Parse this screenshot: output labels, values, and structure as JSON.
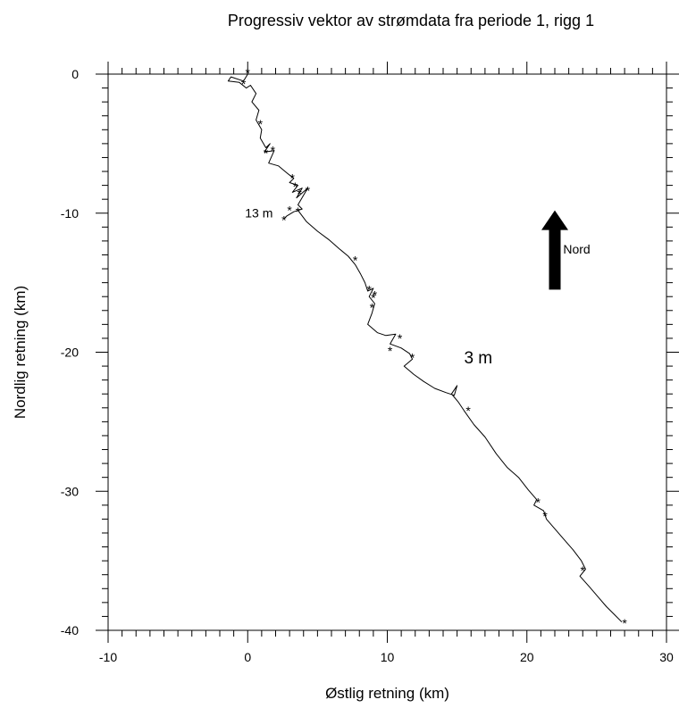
{
  "chart_data": {
    "type": "line",
    "title": "Progressiv vektor av strømdata fra periode 1, rigg 1",
    "xlabel": "Østlig retning (km)",
    "ylabel": "Nordlig retning (km)",
    "xlim": [
      -10,
      30
    ],
    "ylim": [
      -40,
      0
    ],
    "x_ticks": [
      -10,
      0,
      10,
      20,
      30
    ],
    "y_ticks": [
      0,
      -10,
      -20,
      -30,
      -40
    ],
    "x_tick_labels": [
      "-10",
      "0",
      "10",
      "20",
      "30"
    ],
    "y_tick_labels": [
      "0",
      "-10",
      "-20",
      "-30",
      "-40"
    ],
    "grid": false,
    "series": [
      {
        "name": "13 m",
        "x": [
          0,
          -0.3,
          -1.2,
          -1.4,
          -0.6,
          -0.1,
          0.2,
          0.6,
          0.3,
          0.8,
          0.6,
          1.0,
          0.9,
          1.3,
          1.6,
          1.2,
          1.9,
          1.5,
          2.2,
          2.8,
          3.3,
          3.0,
          3.6,
          3.2,
          3.9,
          3.5,
          4.3,
          3.6,
          3.9,
          3.3,
          2.8,
          2.6
        ],
        "y": [
          0,
          -0.5,
          -0.2,
          -0.5,
          -0.6,
          -1.0,
          -0.8,
          -1.4,
          -2.0,
          -2.6,
          -3.3,
          -4.0,
          -4.6,
          -5.3,
          -5.0,
          -5.6,
          -5.5,
          -6.4,
          -6.6,
          -7.1,
          -7.5,
          -7.8,
          -8.0,
          -8.5,
          -8.2,
          -8.9,
          -8.2,
          -9.4,
          -9.7,
          -9.9,
          -10.2,
          -10.4
        ],
        "markers_x": [
          0,
          -0.3,
          0.9,
          1.3,
          1.8,
          3.2,
          3.4,
          3.7,
          4.3,
          3.0,
          3.6,
          2.6
        ],
        "markers_y": [
          0.3,
          -0.5,
          -3.4,
          -5.5,
          -5.3,
          -7.3,
          -7.9,
          -8.4,
          -8.2,
          -9.6,
          -9.7,
          -10.3
        ]
      },
      {
        "name": "3 m",
        "x": [
          3.6,
          4.2,
          5.0,
          5.8,
          6.6,
          7.2,
          7.7,
          8.1,
          8.4,
          8.6,
          9.0,
          8.7,
          9.1,
          8.9,
          8.6,
          9.3,
          9.9,
          10.6,
          10.2,
          11.0,
          11.6,
          11.8,
          11.2,
          11.9,
          12.6,
          13.4,
          14.2,
          14.8,
          15.0,
          14.6,
          15.1,
          15.5,
          16.2,
          17.0,
          17.8,
          18.6,
          19.4,
          20.1,
          20.7,
          20.5,
          21.2,
          21.4,
          22.0,
          22.6,
          23.3,
          23.9,
          24.2,
          23.8,
          24.5,
          25.1,
          25.7,
          26.3,
          26.8
        ],
        "y": [
          -9.8,
          -10.6,
          -11.3,
          -11.9,
          -12.6,
          -13.1,
          -13.7,
          -14.4,
          -15.0,
          -15.6,
          -15.4,
          -16.0,
          -16.5,
          -17.2,
          -18.0,
          -18.6,
          -18.8,
          -18.7,
          -19.4,
          -19.7,
          -20.1,
          -20.5,
          -21.0,
          -21.6,
          -22.1,
          -22.6,
          -22.9,
          -23.1,
          -22.4,
          -23.0,
          -23.6,
          -24.2,
          -25.2,
          -26.1,
          -27.3,
          -28.3,
          -29.0,
          -29.9,
          -30.6,
          -31.0,
          -31.4,
          -32.0,
          -32.7,
          -33.4,
          -34.2,
          -35.0,
          -35.6,
          -36.1,
          -36.9,
          -37.6,
          -38.3,
          -38.9,
          -39.4
        ],
        "markers_x": [
          7.7,
          8.7,
          9.0,
          9.1,
          8.9,
          10.9,
          10.2,
          11.8,
          15.8,
          20.8,
          21.3,
          24.0,
          27.0
        ],
        "markers_y": [
          -13.2,
          -15.3,
          -15.9,
          -15.7,
          -16.6,
          -18.8,
          -19.7,
          -20.2,
          -24.0,
          -30.6,
          -31.6,
          -35.5,
          -39.3
        ]
      }
    ],
    "annotations": [
      {
        "text": "13 m",
        "x": 1.8,
        "y": -10.3
      },
      {
        "text": "3 m",
        "x": 15.5,
        "y": -20.8
      },
      {
        "text": "Nord",
        "x": 22.6,
        "y": -12.9
      }
    ],
    "north_arrow": {
      "x": 22.0,
      "y_tail": -15.5,
      "y_head": -9.8
    }
  }
}
